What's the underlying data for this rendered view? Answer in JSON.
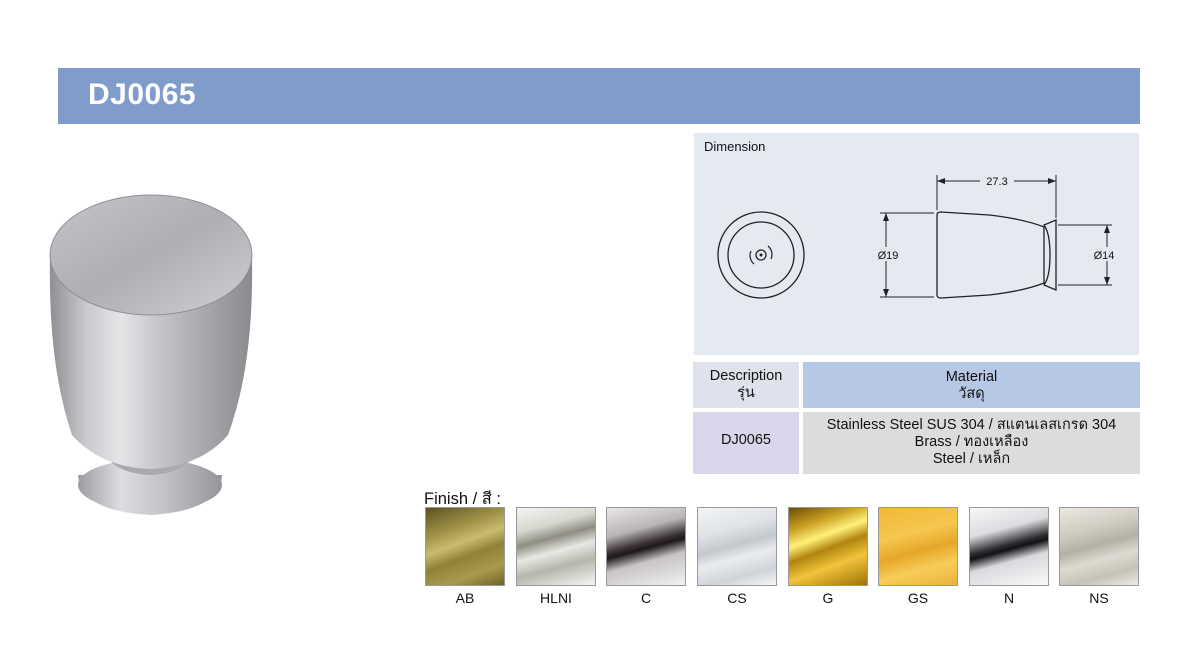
{
  "header": {
    "model": "DJ0065"
  },
  "dimension": {
    "label": "Dimension",
    "length": "27.3",
    "diameter_large": "Ø19",
    "diameter_small": "Ø14"
  },
  "spec_table": {
    "description_header": "Description",
    "description_header_th": "รุ่น",
    "material_header": "Material",
    "material_header_th": "วัสดุ",
    "model": "DJ0065",
    "materials": [
      "Stainless Steel SUS 304 / สแตนเลสเกรด 304",
      "Brass / ทองเหลือง",
      "Steel / เหล็ก"
    ]
  },
  "finish": {
    "title": "Finish / สี :",
    "swatches": [
      {
        "code": "AB"
      },
      {
        "code": "HLNI"
      },
      {
        "code": "C"
      },
      {
        "code": "CS"
      },
      {
        "code": "G"
      },
      {
        "code": "GS"
      },
      {
        "code": "N"
      },
      {
        "code": "NS"
      }
    ]
  }
}
